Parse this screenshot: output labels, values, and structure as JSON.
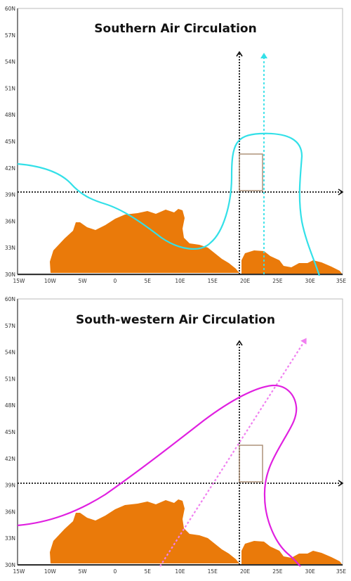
{
  "panels": [
    {
      "title": "Southern Air Circulation",
      "y_ticks": [
        "60N",
        "57N",
        "54N",
        "51N",
        "48N",
        "45N",
        "42N",
        "39N",
        "36N",
        "33N",
        "30N"
      ],
      "x_ticks": [
        "15W",
        "10W",
        "5W",
        "0",
        "5E",
        "10E",
        "15E",
        "20E",
        "25E",
        "30E",
        "35E"
      ],
      "curve_color": "#33e0e8",
      "arrow_color": "#33e0e8",
      "land_color": "#ea7a0a",
      "box_color": "#a88a70"
    },
    {
      "title": "South-western Air Circulation",
      "y_ticks": [
        "60N",
        "57N",
        "54N",
        "51N",
        "48N",
        "45N",
        "42N",
        "39N",
        "36N",
        "33N",
        "30N"
      ],
      "x_ticks": [
        "15W",
        "10W",
        "5W",
        "0",
        "5E",
        "10E",
        "15E",
        "20E",
        "25E",
        "30E",
        "35E"
      ],
      "curve_color": "#e020e0",
      "arrow_color": "#f080f0",
      "land_color": "#ea7a0a",
      "box_color": "#a88a70"
    }
  ]
}
